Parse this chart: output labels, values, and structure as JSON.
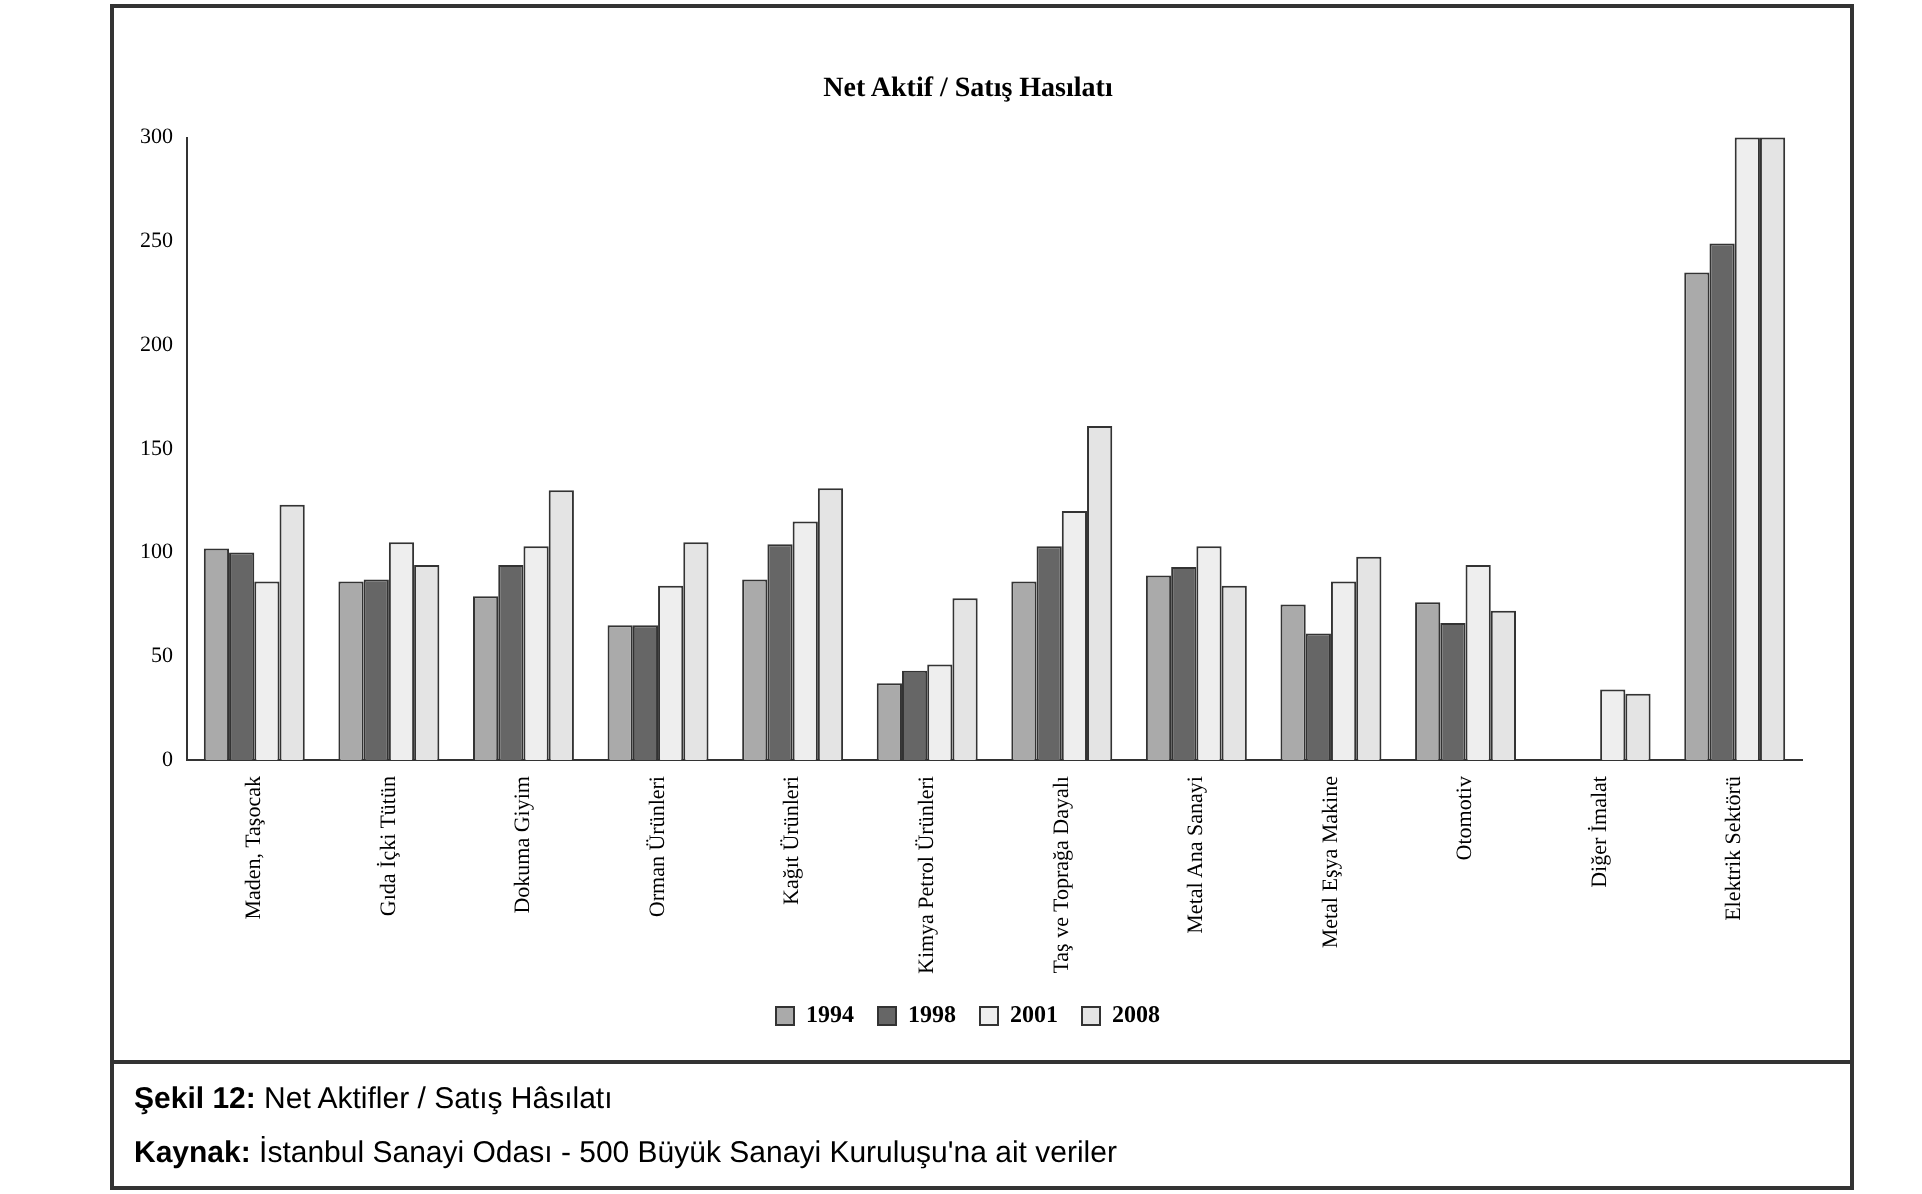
{
  "chart_data": {
    "type": "bar",
    "title": "Net Aktif / Satış Hasılatı",
    "categories": [
      "Maden, Taşocak",
      "Gıda İçki Tütün",
      "Dokuma Giyim",
      "Orman Ürünleri",
      "Kağıt Ürünleri",
      "Kimya Petrol Ürünleri",
      "Taş ve Toprağa Dayalı",
      "Metal Ana Sanayi",
      "Metal Eşya Makine",
      "Otomotiv",
      "Diğer İmalat",
      "Elektrik Sektörü"
    ],
    "series": [
      {
        "name": "1994",
        "color": "#aaaaaa",
        "values": [
          102,
          86,
          79,
          65,
          87,
          37,
          86,
          89,
          75,
          76,
          null,
          235
        ]
      },
      {
        "name": "1998",
        "color": "#666666",
        "values": [
          100,
          87,
          94,
          65,
          104,
          43,
          103,
          93,
          61,
          66,
          null,
          249
        ]
      },
      {
        "name": "2001",
        "color": "#eeeeee",
        "values": [
          86,
          105,
          103,
          84,
          115,
          46,
          120,
          103,
          86,
          94,
          34,
          300
        ]
      },
      {
        "name": "2008",
        "color": "#e4e4e4",
        "values": [
          123,
          94,
          130,
          105,
          131,
          78,
          161,
          84,
          98,
          72,
          32,
          300
        ]
      }
    ],
    "ylim": [
      0,
      300
    ],
    "yticks": [
      0,
      50,
      100,
      150,
      200,
      250,
      300
    ],
    "grid": false,
    "legend": "bottom",
    "annotations": [
      "Şekil 12: Net Aktifler / Satış Hâsılatı",
      "Kaynak: İstanbul Sanayi Odası - 500 Büyük Sanayi Kuruluşu'na ait veriler"
    ]
  }
}
